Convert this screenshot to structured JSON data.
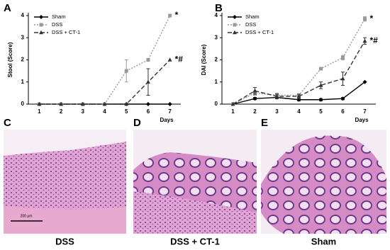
{
  "chart_data": [
    {
      "type": "line",
      "panel_label": "A",
      "ylabel": "Stool (Score)",
      "xlabel": "Days",
      "categories": [
        "1",
        "2",
        "3",
        "4",
        "5",
        "6",
        "7"
      ],
      "ylim": [
        0,
        4
      ],
      "yticks": [
        0,
        1,
        2,
        3,
        4
      ],
      "legend": "upper left",
      "series": [
        {
          "name": "Sham",
          "color": "#000000",
          "dash": "none",
          "marker": "diamond",
          "values": [
            0,
            0,
            0,
            0,
            0,
            0,
            0
          ],
          "errors": [
            null,
            null,
            null,
            null,
            null,
            null,
            null
          ]
        },
        {
          "name": "DSS",
          "color": "#999999",
          "dash": "2,2",
          "marker": "square",
          "values": [
            0,
            0,
            0,
            0,
            1.5,
            2,
            4
          ],
          "errors": [
            null,
            null,
            null,
            null,
            0.5,
            null,
            null
          ]
        },
        {
          "name": "DSS + CT-1",
          "color": "#333333",
          "dash": "6,3",
          "marker": "triangle",
          "values": [
            0,
            0,
            0,
            0,
            0,
            1,
            2
          ],
          "errors": [
            null,
            null,
            null,
            null,
            null,
            0.6,
            null
          ]
        }
      ],
      "annotations": [
        "*",
        "*#"
      ]
    },
    {
      "type": "line",
      "panel_label": "B",
      "ylabel": "DAI (Score)",
      "xlabel": "Days",
      "categories": [
        "1",
        "2",
        "3",
        "4",
        "5",
        "6",
        "7"
      ],
      "ylim": [
        0,
        4
      ],
      "yticks": [
        0,
        1,
        2,
        3,
        4
      ],
      "legend": "upper left",
      "series": [
        {
          "name": "Sham",
          "color": "#000000",
          "dash": "none",
          "marker": "diamond",
          "values": [
            0,
            0.25,
            0.3,
            0.2,
            0.2,
            0.25,
            1
          ],
          "errors": [
            null,
            0.05,
            0.05,
            0.05,
            0.05,
            0.05,
            null
          ]
        },
        {
          "name": "DSS",
          "color": "#999999",
          "dash": "2,2",
          "marker": "square",
          "values": [
            0,
            0.5,
            0.4,
            0.4,
            1.6,
            2.1,
            3.85
          ],
          "errors": [
            null,
            0.1,
            0.1,
            0.05,
            0.05,
            0.1,
            0.1
          ]
        },
        {
          "name": "DSS + CT-1",
          "color": "#333333",
          "dash": "6,3",
          "marker": "triangle",
          "values": [
            0,
            0.6,
            0.35,
            0.35,
            0.85,
            1.15,
            2.85
          ],
          "errors": [
            null,
            0.15,
            0.1,
            0.1,
            0.15,
            0.3,
            0.15
          ]
        }
      ],
      "annotations": [
        "*",
        "*#"
      ]
    }
  ],
  "panels": [
    {
      "label": "C",
      "caption": "DSS",
      "scale_bar": "200 μm"
    },
    {
      "label": "D",
      "caption": "DSS + CT-1"
    },
    {
      "label": "E",
      "caption": "Sham"
    }
  ]
}
